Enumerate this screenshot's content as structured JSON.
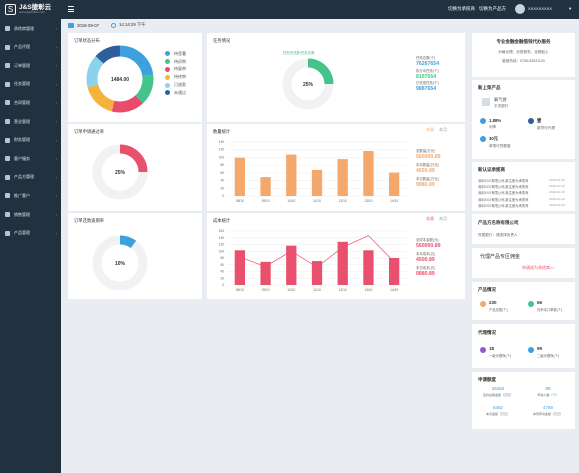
{
  "brand": {
    "name": "J&S捷彰云",
    "sub": "www.jsgzhilian.com"
  },
  "header": {
    "link1": "切换为承揽商",
    "link2": "切换为产品方",
    "user": "XXXXXXXXX",
    "caret": "▾"
  },
  "date_bar": {
    "date": "2018-09-07",
    "time": "14:14:29 下午"
  },
  "sidebar": {
    "items": [
      "承揽商管理",
      "产品代理",
      "订单管理",
      "任务管理",
      "合同管理",
      "营业管理",
      "财务管理",
      "客户服务",
      "产品方管理",
      "推广客户",
      "销售管理",
      "产品管理"
    ],
    "arrow": "›"
  },
  "order_status": {
    "title": "订单状态分布",
    "total": "1484.00",
    "legend": [
      "待签署",
      "待初审",
      "待复审",
      "待终审",
      "已放款",
      "未通过"
    ],
    "colors": [
      "#3fa0de",
      "#44c48b",
      "#e84c6a",
      "#f4b43c",
      "#8bd3ea",
      "#2e5f9b"
    ]
  },
  "chart_data": [
    {
      "type": "pie",
      "title": "订单状态分布",
      "categories": [
        "待签署",
        "待初审",
        "待复审",
        "待终审",
        "已放款",
        "未通过"
      ],
      "values": [
        23,
        15,
        16,
        17,
        16,
        13
      ]
    },
    {
      "type": "pie",
      "title": "任务情况",
      "values": [
        25,
        75
      ],
      "categories": [
        "完成",
        "未完成"
      ]
    },
    {
      "type": "pie",
      "title": "订单申请通过率",
      "values": [
        25,
        75
      ],
      "categories": [
        "通过",
        "未通过"
      ]
    },
    {
      "type": "pie",
      "title": "订单还款逾期率",
      "values": [
        10,
        90
      ],
      "categories": [
        "逾期",
        "未逾期"
      ]
    },
    {
      "type": "bar",
      "title": "数量统计",
      "categories": [
        "08/10",
        "09/10",
        "10/10",
        "11/10",
        "12/10",
        "13/10",
        "14/10"
      ],
      "values": [
        85,
        42,
        92,
        58,
        82,
        100,
        52
      ],
      "ylim": [
        0,
        120
      ],
      "color": "#f4a86b"
    },
    {
      "type": "bar",
      "title": "成本统计",
      "categories": [
        "08/10",
        "09/10",
        "10/10",
        "11/10",
        "12/10",
        "13/10",
        "14/10"
      ],
      "values": [
        90,
        60,
        102,
        62,
        112,
        90,
        70
      ],
      "ylim": [
        0,
        140
      ],
      "line": [
        72,
        48,
        88,
        46,
        98,
        128,
        60
      ],
      "color": "#e8506e"
    }
  ],
  "task": {
    "title": "任务情况",
    "caption": "任务完成数/任务总数",
    "pct": "25%",
    "stats": [
      {
        "label": "任务总数(个)",
        "value": "76267654",
        "color": "#3fa0de"
      },
      {
        "label": "执行中任务(个)",
        "value": "8197654",
        "color": "#44c48b"
      },
      {
        "label": "已完成任务(个)",
        "value": "9887654",
        "color": "#3fa0de"
      }
    ]
  },
  "pass_rate": {
    "title": "订单申请通过率",
    "pct": "25%"
  },
  "overdue": {
    "title": "订单还款逾期率",
    "pct": "10%"
  },
  "qty": {
    "title": "数量统计",
    "tabs": [
      "本周",
      "本月"
    ],
    "yticks": [
      "140",
      "120",
      "100",
      "80",
      "60",
      "40",
      "20",
      "0"
    ],
    "stats": [
      {
        "label": "总数量(万元)",
        "value": "560000.89",
        "color": "#f4a86b"
      },
      {
        "label": "本月数量(万元)",
        "value": "4500.89",
        "color": "#f4a86b"
      },
      {
        "label": "本日数量(万元)",
        "value": "9880.89",
        "color": "#f4a86b"
      }
    ]
  },
  "cost": {
    "title": "成本统计",
    "tabs": [
      "本周",
      "本月"
    ],
    "yticks": [
      "160",
      "140",
      "120",
      "100",
      "80",
      "60",
      "40",
      "20",
      "0"
    ],
    "stats": [
      {
        "label": "总成本金额(元)",
        "value": "560000.89",
        "color": "#e8506e"
      },
      {
        "label": "本月成本(元)",
        "value": "4500.89",
        "color": "#e8506e"
      },
      {
        "label": "本日成本(元)",
        "value": "9880.89",
        "color": "#e8506e"
      }
    ]
  },
  "right": {
    "company": {
      "title": "专业金融金融借钱代办服务",
      "slogan": "价格合理，优质服务，全程贴心",
      "phone": "营销热线：0755-83531120"
    },
    "new_product": {
      "title": "新上架产品",
      "name": "氧气贷",
      "bank": "平安银行",
      "stats": [
        {
          "value": "1.88%",
          "label": "利率"
        },
        {
          "value": "壹",
          "label": "新贷可代理"
        },
        {
          "value": "30元",
          "label": "单笔可贷额度"
        }
      ]
    },
    "notice": {
      "title": "新认证承揽商",
      "items": [
        {
          "text": "深圳XXX有限公司,新注册为承揽商",
          "date": "2018-10-10"
        },
        {
          "text": "深圳XXX有限公司,新注册为承揽商",
          "date": "2018-10-10"
        },
        {
          "text": "深圳XXX有限公司,新注册为承揽商",
          "date": "2018-10-10"
        },
        {
          "text": "深圳XXX有限公司,新注册为承揽商",
          "date": "2018-10-10"
        },
        {
          "text": "深圳XXX有限公司,新注册为承揽商",
          "date": "2018-10-10"
        }
      ]
    },
    "contact": {
      "title": "产品方名称有限公司",
      "text": "所属银行：请选择负责人"
    },
    "agent": {
      "title": "代理产品专区佣金",
      "link": "申请成为承揽商>>"
    },
    "product_status": {
      "title": "产品情况",
      "items": [
        {
          "value": "230",
          "label": "产品总数(个)"
        },
        {
          "value": "56",
          "label": "在申请订单数(个)"
        }
      ]
    },
    "agent_status": {
      "title": "代理情况",
      "items": [
        {
          "value": "18",
          "label": "一级代理商(个)"
        },
        {
          "value": "99",
          "label": "二级代理商(个)"
        }
      ]
    },
    "apply": {
      "title": "申请额度",
      "items": [
        {
          "value": "36482",
          "label": "签约总额金额（万元）"
        },
        {
          "value": "89",
          "label": "申请人数（个）"
        },
        {
          "value": "6482",
          "label": "本月金额（万元）"
        },
        {
          "value": "4756",
          "label": "本周申请金额（万元）"
        }
      ]
    }
  }
}
